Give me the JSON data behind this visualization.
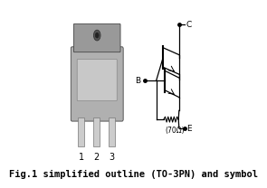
{
  "bg_color": "#ffffff",
  "caption": "Fig.1 simplified outline (TO-3PN) and symbol",
  "caption_fontsize": 7.5,
  "pin_labels": [
    "1",
    "2",
    "3"
  ],
  "resistor_label": "(70Ω)"
}
